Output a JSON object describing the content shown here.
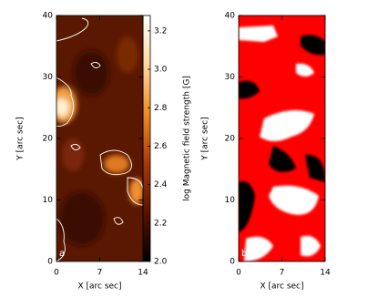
{
  "chart_data": [
    {
      "type": "heatmap",
      "panel_label": "a",
      "xlabel": "X [arc sec]",
      "ylabel": "Y [arc sec]",
      "xlim": [
        0,
        14
      ],
      "xticks": [
        0,
        7,
        14
      ],
      "ylim": [
        0,
        40
      ],
      "yticks": [
        0,
        10,
        20,
        30,
        40
      ],
      "colormap": [
        "#000000",
        "#5a1200",
        "#a83a08",
        "#f08a20",
        "#ffd9a0",
        "#ffffff"
      ],
      "colorbar": {
        "label": "log Magnetic field strength [G]",
        "lim": [
          2.0,
          3.28
        ],
        "ticks": [
          {
            "value": 2.0,
            "label": "2.0"
          },
          {
            "value": 2.2,
            "label": "2.2"
          },
          {
            "value": 2.4,
            "label": "2.4"
          },
          {
            "value": 2.6,
            "label": "2.6"
          },
          {
            "value": 2.8,
            "label": "2.8"
          },
          {
            "value": 3.0,
            "label": "3.0"
          },
          {
            "value": 3.2,
            "label": "3.2"
          }
        ]
      }
    },
    {
      "type": "heatmap",
      "panel_label": "b",
      "xlabel": "X [arc sec]",
      "ylabel": "Y [arc sec]",
      "xlim": [
        0,
        14
      ],
      "xticks": [
        0,
        7,
        14
      ],
      "ylim": [
        0,
        40
      ],
      "yticks": [
        0,
        10,
        20,
        30,
        40
      ]
    }
  ]
}
